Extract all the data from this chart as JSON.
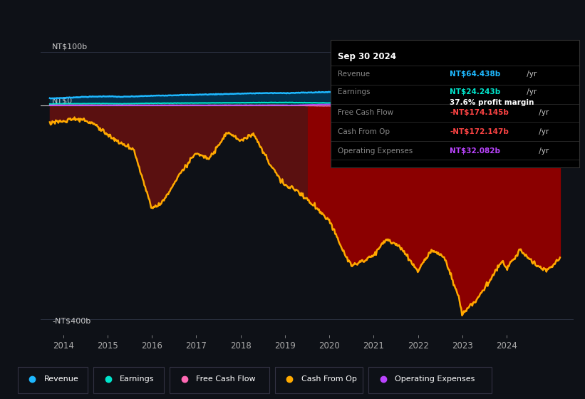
{
  "bg_color": "#0e1117",
  "plot_bg_color": "#0e1117",
  "info_box": {
    "date": "Sep 30 2024",
    "revenue_label": "Revenue",
    "revenue_val": "NT$64.438b",
    "revenue_unit": " /yr",
    "revenue_color": "#1eb8ff",
    "earnings_label": "Earnings",
    "earnings_val": "NT$24.243b",
    "earnings_unit": " /yr",
    "earnings_color": "#00e5cc",
    "profit_margin": "37.6% profit margin",
    "fcf_label": "Free Cash Flow",
    "fcf_val": "-NT$174.145b",
    "fcf_unit": " /yr",
    "fcf_color": "#ff4444",
    "cfo_label": "Cash From Op",
    "cfo_val": "-NT$172.147b",
    "cfo_unit": " /yr",
    "cfo_color": "#ff4444",
    "opex_label": "Operating Expenses",
    "opex_val": "NT$32.082b",
    "opex_unit": " /yr",
    "opex_color": "#bb44ff"
  },
  "legend": [
    {
      "label": "Revenue",
      "color": "#1eb8ff"
    },
    {
      "label": "Earnings",
      "color": "#00e5cc"
    },
    {
      "label": "Free Cash Flow",
      "color": "#ff69b4"
    },
    {
      "label": "Cash From Op",
      "color": "#ffaa00"
    },
    {
      "label": "Operating Expenses",
      "color": "#bb44ff"
    }
  ],
  "ylim": [
    -430,
    130
  ],
  "xlim": [
    2013.5,
    2025.5
  ],
  "yticks_labels": [
    "NT$100b",
    "NT$0",
    "-NT$400b"
  ],
  "yticks_values": [
    100,
    0,
    -400
  ],
  "xticks": [
    2014,
    2015,
    2016,
    2017,
    2018,
    2019,
    2020,
    2021,
    2022,
    2023,
    2024
  ],
  "shade_split": 2019.5,
  "shade_color_left": "#5a1010",
  "shade_color_right": "#8b0000",
  "revenue_color": "#1eb8ff",
  "earnings_color": "#00e5cc",
  "fcf_color": "#ff69b4",
  "cfo_color": "#ffaa00",
  "opex_color": "#bb44ff",
  "fill_revenue_color": "#003a5c",
  "fill_earnings_color": "#004433"
}
